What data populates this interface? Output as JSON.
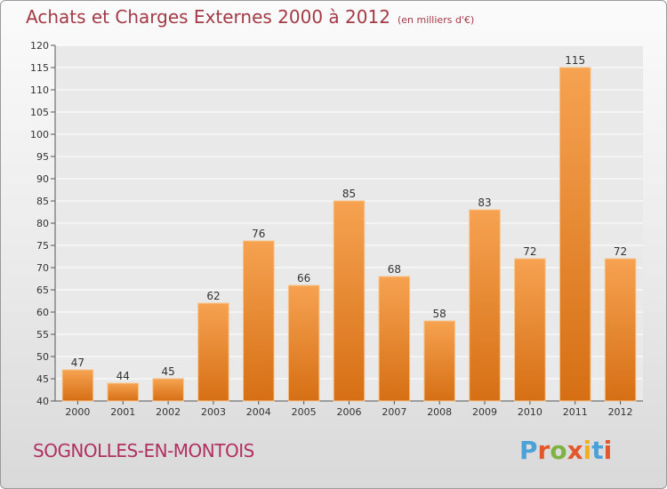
{
  "chart_data": {
    "type": "bar",
    "title": "Achats et Charges Externes 2000 à 2012",
    "subtitle": "(en milliers d'€)",
    "categories": [
      "2000",
      "2001",
      "2002",
      "2003",
      "2004",
      "2005",
      "2006",
      "2007",
      "2008",
      "2009",
      "2010",
      "2011",
      "2012"
    ],
    "values": [
      47,
      44,
      45,
      62,
      76,
      66,
      85,
      68,
      58,
      83,
      72,
      115,
      72
    ],
    "ylim": [
      40,
      120
    ],
    "yticks": [
      40,
      45,
      50,
      55,
      60,
      65,
      70,
      75,
      80,
      85,
      90,
      95,
      100,
      105,
      110,
      115,
      120
    ],
    "grid": true,
    "bar_color": "#f0912f"
  },
  "footer": {
    "commune": "SOGNOLLES-EN-MONTOIS",
    "logo_text": "Proxiti",
    "logo_colors": [
      "#4aa2d8",
      "#e2572c",
      "#7cb342",
      "#e2572c",
      "#f2b01e",
      "#4aa2d8",
      "#e2572c"
    ]
  }
}
